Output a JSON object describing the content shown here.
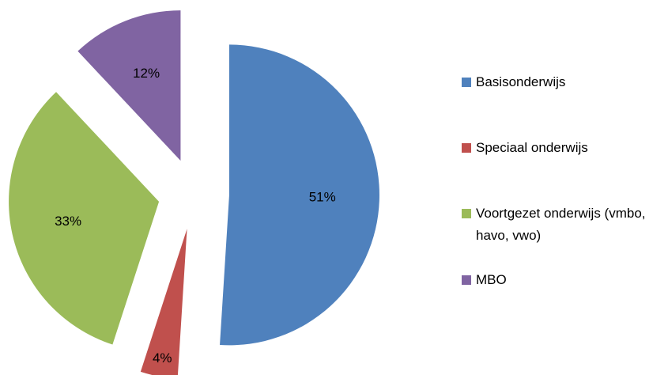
{
  "chart_data": {
    "type": "pie",
    "categories": [
      "Basisonderwijs",
      "Speciaal onderwijs",
      "Voortgezet onderwijs (vmbo, havo, vwo)",
      "MBO"
    ],
    "values": [
      51,
      4,
      33,
      12
    ],
    "value_labels": [
      "51%",
      "4%",
      "33%",
      "12%"
    ],
    "colors": [
      "#4f81bd",
      "#c0504d",
      "#9bbb59",
      "#8064a2"
    ],
    "exploded": true,
    "legend": "right"
  }
}
